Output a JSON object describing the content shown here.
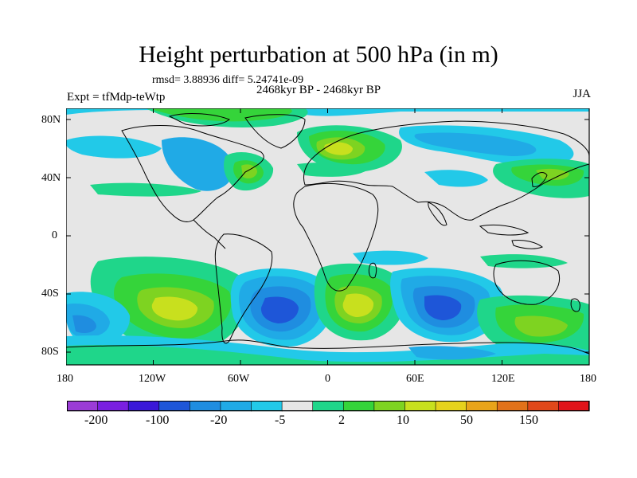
{
  "title": "Height perturbation at 500 hPa (in m)",
  "stats": "rmsd= 3.88936 diff= 5.24741e-09",
  "period": "2468kyr BP - 2468kyr BP",
  "experiment": "Expt = tfMdp-teWtp",
  "season": "JJA",
  "map": {
    "background_color": "#e6e6e6",
    "lat_ticks": [
      "80N",
      "40N",
      "0",
      "40S",
      "80S"
    ],
    "lon_ticks": [
      "180",
      "120W",
      "60W",
      "0",
      "60E",
      "120E",
      "180"
    ]
  },
  "colorbar": {
    "colors": [
      "#9b3cd6",
      "#7a1fe0",
      "#3a18d8",
      "#1e56d8",
      "#1f8de0",
      "#20aae6",
      "#22c9e8",
      "#e6e6e6",
      "#1fd68a",
      "#35d43a",
      "#7ed321",
      "#c8e01e",
      "#e6d21c",
      "#e8a41a",
      "#e2721a",
      "#e0481a",
      "#e0141a"
    ],
    "labels": [
      "-200",
      "-100",
      "-20",
      "-5",
      "2",
      "10",
      "50",
      "150"
    ]
  }
}
